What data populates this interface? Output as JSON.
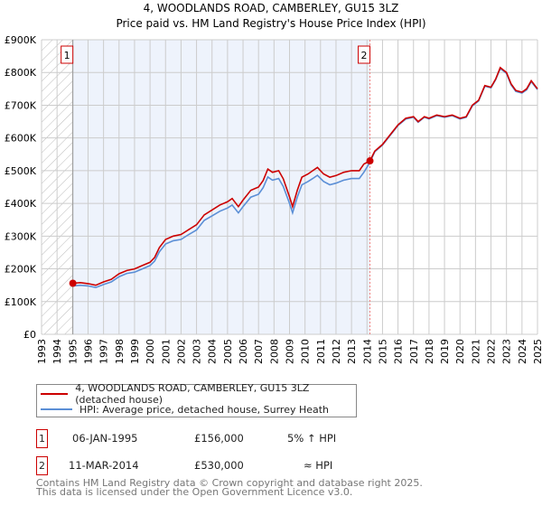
{
  "chart_data": {
    "type": "line",
    "title": "4, WOODLANDS ROAD, CAMBERLEY, GU15 3LZ",
    "subtitle": "Price paid vs. HM Land Registry's House Price Index (HPI)",
    "xlim": [
      1993,
      2025
    ],
    "ylim": [
      0,
      900000
    ],
    "y_ticks": [
      {
        "v": 0,
        "label": "£0"
      },
      {
        "v": 100000,
        "label": "£100K"
      },
      {
        "v": 200000,
        "label": "£200K"
      },
      {
        "v": 300000,
        "label": "£300K"
      },
      {
        "v": 400000,
        "label": "£400K"
      },
      {
        "v": 500000,
        "label": "£500K"
      },
      {
        "v": 600000,
        "label": "£600K"
      },
      {
        "v": 700000,
        "label": "£700K"
      },
      {
        "v": 800000,
        "label": "£800K"
      },
      {
        "v": 900000,
        "label": "£900K"
      }
    ],
    "x_ticks": [
      "1993",
      "1994",
      "1995",
      "1996",
      "1997",
      "1998",
      "1999",
      "2000",
      "2001",
      "2002",
      "2003",
      "2004",
      "2005",
      "2006",
      "2007",
      "2008",
      "2009",
      "2010",
      "2011",
      "2012",
      "2013",
      "2014",
      "2015",
      "2016",
      "2017",
      "2018",
      "2019",
      "2020",
      "2021",
      "2022",
      "2023",
      "2024",
      "2025"
    ],
    "grid": true,
    "colors": {
      "property": "#cc0000",
      "hpi": "#5b8fd6",
      "shade": "#eef3fc",
      "marker": "#cc0000"
    },
    "series": [
      {
        "name": "4, WOODLANDS ROAD, CAMBERLEY, GU15 3LZ (detached house)",
        "key": "property",
        "points": [
          [
            1995.02,
            156000
          ],
          [
            1995.5,
            158000
          ],
          [
            1996,
            155000
          ],
          [
            1996.5,
            150000
          ],
          [
            1997,
            160000
          ],
          [
            1997.5,
            168000
          ],
          [
            1998,
            185000
          ],
          [
            1998.5,
            195000
          ],
          [
            1999,
            200000
          ],
          [
            1999.5,
            210000
          ],
          [
            2000,
            220000
          ],
          [
            2000.3,
            235000
          ],
          [
            2000.6,
            265000
          ],
          [
            2001,
            290000
          ],
          [
            2001.5,
            300000
          ],
          [
            2002,
            305000
          ],
          [
            2002.5,
            320000
          ],
          [
            2003,
            335000
          ],
          [
            2003.5,
            365000
          ],
          [
            2004,
            380000
          ],
          [
            2004.5,
            395000
          ],
          [
            2005,
            405000
          ],
          [
            2005.3,
            415000
          ],
          [
            2005.7,
            390000
          ],
          [
            2006,
            410000
          ],
          [
            2006.5,
            440000
          ],
          [
            2007,
            450000
          ],
          [
            2007.3,
            470000
          ],
          [
            2007.6,
            505000
          ],
          [
            2007.9,
            495000
          ],
          [
            2008.3,
            500000
          ],
          [
            2008.6,
            475000
          ],
          [
            2009.0,
            420000
          ],
          [
            2009.2,
            390000
          ],
          [
            2009.5,
            440000
          ],
          [
            2009.8,
            480000
          ],
          [
            2010.2,
            490000
          ],
          [
            2010.5,
            500000
          ],
          [
            2010.8,
            510000
          ],
          [
            2011.2,
            490000
          ],
          [
            2011.6,
            480000
          ],
          [
            2012,
            485000
          ],
          [
            2012.5,
            495000
          ],
          [
            2013,
            500000
          ],
          [
            2013.5,
            500000
          ],
          [
            2013.8,
            520000
          ],
          [
            2014.19,
            530000
          ],
          [
            2014.5,
            560000
          ],
          [
            2015,
            580000
          ],
          [
            2015.5,
            610000
          ],
          [
            2016,
            640000
          ],
          [
            2016.5,
            660000
          ],
          [
            2017,
            665000
          ],
          [
            2017.3,
            650000
          ],
          [
            2017.7,
            665000
          ],
          [
            2018,
            660000
          ],
          [
            2018.5,
            670000
          ],
          [
            2019,
            665000
          ],
          [
            2019.5,
            670000
          ],
          [
            2020,
            660000
          ],
          [
            2020.4,
            665000
          ],
          [
            2020.8,
            700000
          ],
          [
            2021.2,
            715000
          ],
          [
            2021.6,
            760000
          ],
          [
            2022,
            755000
          ],
          [
            2022.3,
            780000
          ],
          [
            2022.6,
            815000
          ],
          [
            2023,
            800000
          ],
          [
            2023.3,
            765000
          ],
          [
            2023.6,
            745000
          ],
          [
            2024,
            740000
          ],
          [
            2024.3,
            750000
          ],
          [
            2024.6,
            775000
          ],
          [
            2025,
            750000
          ]
        ]
      },
      {
        "name": "HPI: Average price, detached house, Surrey Heath",
        "key": "hpi",
        "points": [
          [
            1995.02,
            148000
          ],
          [
            1995.5,
            150000
          ],
          [
            1996,
            148000
          ],
          [
            1996.5,
            143000
          ],
          [
            1997,
            152000
          ],
          [
            1997.5,
            160000
          ],
          [
            1998,
            176000
          ],
          [
            1998.5,
            186000
          ],
          [
            1999,
            190000
          ],
          [
            1999.5,
            200000
          ],
          [
            2000,
            210000
          ],
          [
            2000.3,
            224000
          ],
          [
            2000.6,
            252000
          ],
          [
            2001,
            276000
          ],
          [
            2001.5,
            286000
          ],
          [
            2002,
            290000
          ],
          [
            2002.5,
            305000
          ],
          [
            2003,
            319000
          ],
          [
            2003.5,
            348000
          ],
          [
            2004,
            362000
          ],
          [
            2004.5,
            376000
          ],
          [
            2005,
            386000
          ],
          [
            2005.3,
            395000
          ],
          [
            2005.7,
            371000
          ],
          [
            2006,
            390000
          ],
          [
            2006.5,
            419000
          ],
          [
            2007,
            428000
          ],
          [
            2007.3,
            448000
          ],
          [
            2007.6,
            481000
          ],
          [
            2007.9,
            471000
          ],
          [
            2008.3,
            476000
          ],
          [
            2008.6,
            452000
          ],
          [
            2009.0,
            400000
          ],
          [
            2009.2,
            371000
          ],
          [
            2009.5,
            419000
          ],
          [
            2009.8,
            457000
          ],
          [
            2010.2,
            467000
          ],
          [
            2010.5,
            476000
          ],
          [
            2010.8,
            486000
          ],
          [
            2011.2,
            467000
          ],
          [
            2011.6,
            457000
          ],
          [
            2012,
            462000
          ],
          [
            2012.5,
            471000
          ],
          [
            2013,
            476000
          ],
          [
            2013.5,
            476000
          ],
          [
            2013.8,
            495000
          ],
          [
            2014.19,
            525000
          ],
          [
            2014.5,
            558000
          ],
          [
            2015,
            578000
          ],
          [
            2015.5,
            608000
          ],
          [
            2016,
            638000
          ],
          [
            2016.5,
            658000
          ],
          [
            2017,
            663000
          ],
          [
            2017.3,
            648000
          ],
          [
            2017.7,
            663000
          ],
          [
            2018,
            658000
          ],
          [
            2018.5,
            668000
          ],
          [
            2019,
            663000
          ],
          [
            2019.5,
            668000
          ],
          [
            2020,
            658000
          ],
          [
            2020.4,
            663000
          ],
          [
            2020.8,
            698000
          ],
          [
            2021.2,
            713000
          ],
          [
            2021.6,
            758000
          ],
          [
            2022,
            753000
          ],
          [
            2022.3,
            778000
          ],
          [
            2022.6,
            812000
          ],
          [
            2023,
            797000
          ],
          [
            2023.3,
            762000
          ],
          [
            2023.6,
            742000
          ],
          [
            2024,
            737000
          ],
          [
            2024.3,
            747000
          ],
          [
            2024.6,
            772000
          ],
          [
            2025,
            748000
          ]
        ]
      }
    ],
    "sales": [
      {
        "id": "1",
        "x": 1995.02,
        "y": 156000,
        "date": "06-JAN-1995",
        "price": "£156,000",
        "hpi": "5% ↑ HPI"
      },
      {
        "id": "2",
        "x": 2014.19,
        "y": 530000,
        "date": "11-MAR-2014",
        "price": "£530,000",
        "hpi": "≈ HPI"
      }
    ]
  },
  "legend": {
    "property": "4, WOODLANDS ROAD, CAMBERLEY, GU15 3LZ (detached house)",
    "hpi": "HPI: Average price, detached house, Surrey Heath"
  },
  "footer": {
    "line1": "Contains HM Land Registry data © Crown copyright and database right 2025.",
    "line2": "This data is licensed under the Open Government Licence v3.0."
  }
}
